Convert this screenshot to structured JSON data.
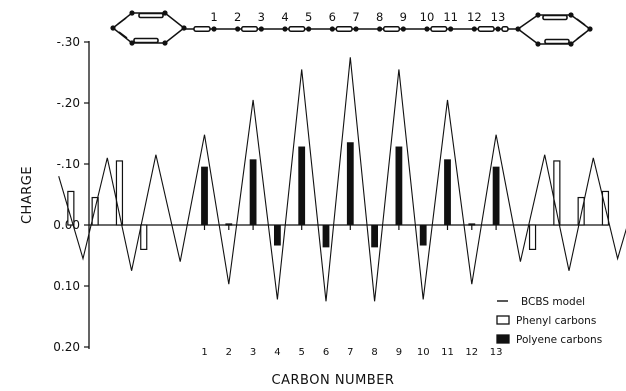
{
  "chart_data": {
    "type": "bar",
    "title": "",
    "xlabel": "CARBON NUMBER",
    "ylabel": "CHARGE",
    "ylim": [
      0.2,
      -0.3
    ],
    "y_axis_inverted": true,
    "y_ticks": [
      "-.30",
      "-.20",
      "-.10",
      "0.00",
      "0.10",
      "0.20"
    ],
    "y_tick_values": [
      -0.3,
      -0.2,
      -0.1,
      0.0,
      0.1,
      0.2
    ],
    "x_tick_labels": [
      "1",
      "2",
      "3",
      "4",
      "5",
      "6",
      "7",
      "8",
      "9",
      "10",
      "11",
      "12",
      "13"
    ],
    "legend_position": "bottom-right",
    "molecule_labels": [
      "1",
      "2",
      "3",
      "4",
      "5",
      "6",
      "7",
      "8",
      "9",
      "10",
      "11",
      "12",
      "13"
    ],
    "series": [
      {
        "name": "BCBS model",
        "type": "line",
        "x": [
          -5,
          -4,
          -3,
          -2,
          -1,
          0,
          1,
          2,
          3,
          4,
          5,
          6,
          7,
          8,
          9,
          10,
          11,
          12,
          13,
          14,
          15,
          16,
          17,
          18,
          19
        ],
        "values": [
          -0.08,
          0.055,
          -0.11,
          0.075,
          -0.115,
          0.06,
          -0.148,
          0.097,
          -0.205,
          0.122,
          -0.255,
          0.125,
          -0.275,
          0.125,
          -0.255,
          0.122,
          -0.205,
          0.097,
          -0.148,
          0.06,
          -0.115,
          0.075,
          -0.11,
          0.055,
          -0.08
        ]
      },
      {
        "name": "Phenyl carbons",
        "type": "bar",
        "style": "hollow",
        "x": [
          -4.5,
          -3.5,
          -2.5,
          -1.5,
          14.5,
          15.5,
          16.5,
          17.5
        ],
        "values": [
          -0.055,
          -0.045,
          -0.105,
          0.04,
          0.04,
          -0.105,
          -0.045,
          -0.055
        ]
      },
      {
        "name": "Polyene carbons",
        "type": "bar",
        "style": "filled",
        "x": [
          1,
          2,
          3,
          4,
          5,
          6,
          7,
          8,
          9,
          10,
          11,
          12,
          13
        ],
        "values": [
          -0.095,
          -0.002,
          -0.107,
          0.033,
          -0.128,
          0.036,
          -0.135,
          0.036,
          -0.128,
          0.033,
          -0.107,
          -0.002,
          -0.095
        ]
      }
    ]
  },
  "colors": {
    "ink": "#111111",
    "background": "#ffffff"
  }
}
